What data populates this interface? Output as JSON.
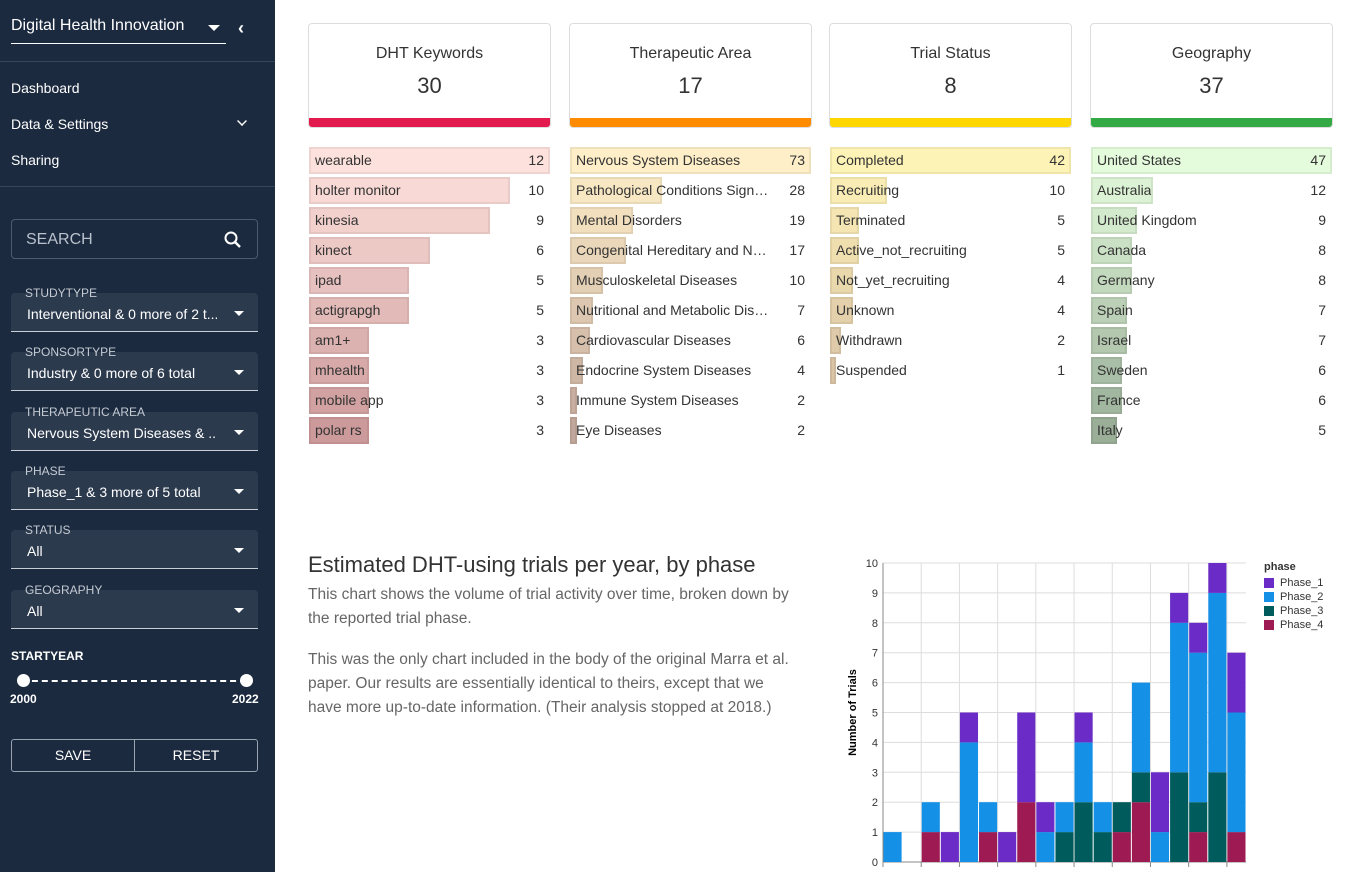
{
  "sidebar": {
    "app_title": "Digital Health Innovation",
    "nav": [
      "Dashboard",
      "Data & Settings",
      "Sharing"
    ],
    "search_placeholder": "SEARCH",
    "filters": [
      {
        "label": "STUDYTYPE",
        "value": "Interventional & 0 more of 2 t..."
      },
      {
        "label": "SPONSORTYPE",
        "value": "Industry & 0 more of 6 total"
      },
      {
        "label": "THERAPEUTIC AREA",
        "value": "Nervous System Diseases & ..."
      },
      {
        "label": "PHASE",
        "value": "Phase_1 & 3 more of 5 total"
      },
      {
        "label": "STATUS",
        "value": "All"
      },
      {
        "label": "GEOGRAPHY",
        "value": "All"
      }
    ],
    "startyear": {
      "label": "STARTYEAR",
      "min": "2000",
      "max": "2022"
    },
    "save": "SAVE",
    "reset": "RESET"
  },
  "cards": [
    {
      "title": "DHT Keywords",
      "count": "30",
      "color": "#e31a4d",
      "row_from": "#fde1dc",
      "row_to": "#cc9a9a",
      "items": [
        [
          "wearable",
          12
        ],
        [
          "holter monitor",
          10
        ],
        [
          "kinesia",
          9
        ],
        [
          "kinect",
          6
        ],
        [
          "ipad",
          5
        ],
        [
          "actigrapgh",
          5
        ],
        [
          "am1+",
          3
        ],
        [
          "mhealth",
          3
        ],
        [
          "mobile app",
          3
        ],
        [
          "polar rs",
          3
        ]
      ]
    },
    {
      "title": "Therapeutic Area",
      "count": "17",
      "color": "#ff8c00",
      "row_from": "#feefc8",
      "row_to": "#c2a79c",
      "items": [
        [
          "Nervous System Diseases",
          73
        ],
        [
          "Pathological Conditions Signs ...",
          28
        ],
        [
          "Mental Disorders",
          19
        ],
        [
          "Congenital Hereditary and Neo...",
          17
        ],
        [
          "Musculoskeletal Diseases",
          10
        ],
        [
          "Nutritional and Metabolic Dise...",
          7
        ],
        [
          "Cardiovascular Diseases",
          6
        ],
        [
          "Endocrine System Diseases",
          4
        ],
        [
          "Immune System Diseases",
          2
        ],
        [
          "Eye Diseases",
          2
        ]
      ]
    },
    {
      "title": "Trial Status",
      "count": "8",
      "color": "#ffd700",
      "row_from": "#fef3b6",
      "row_to": "#d0b6a2",
      "items": [
        [
          "Completed",
          42
        ],
        [
          "Recruiting",
          10
        ],
        [
          "Terminated",
          5
        ],
        [
          "Active_not_recruiting",
          5
        ],
        [
          "Not_yet_recruiting",
          4
        ],
        [
          "Unknown",
          4
        ],
        [
          "Withdrawn",
          2
        ],
        [
          "Suspended",
          1
        ]
      ]
    },
    {
      "title": "Geography",
      "count": "37",
      "color": "#33aa44",
      "row_from": "#e4fbdc",
      "row_to": "#9aae98",
      "items": [
        [
          "United States",
          47
        ],
        [
          "Australia",
          12
        ],
        [
          "United Kingdom",
          9
        ],
        [
          "Canada",
          8
        ],
        [
          "Germany",
          8
        ],
        [
          "Spain",
          7
        ],
        [
          "Israel",
          7
        ],
        [
          "Sweden",
          6
        ],
        [
          "France",
          6
        ],
        [
          "Italy",
          5
        ]
      ]
    }
  ],
  "chart_section": {
    "title": "Estimated DHT-using trials per year, by phase",
    "p1": "This chart shows the volume of trial activity over time, broken down by the reported trial phase.",
    "p2": "This was the only chart included in the body of the original Marra et al. paper. Our results are essentially identical to theirs, except that we have more up-to-date information. (Their analysis stopped at 2018.)"
  },
  "chart_data": {
    "type": "bar",
    "stacked": true,
    "ylabel": "Number of Trials",
    "ylim": [
      0,
      10
    ],
    "yticks": [
      "0",
      "1",
      "2",
      "3",
      "4",
      "5",
      "6",
      "7",
      "8",
      "9",
      "10"
    ],
    "legend_title": "phase",
    "legend": "right",
    "grid": true,
    "series": [
      {
        "name": "Phase_1",
        "color": "#6a2bc6",
        "values": [
          0,
          0,
          0,
          1,
          1,
          0,
          1,
          3,
          1,
          0,
          1,
          0,
          0,
          0,
          2,
          1,
          1,
          1,
          2
        ]
      },
      {
        "name": "Phase_2",
        "color": "#1490e6",
        "values": [
          1,
          0,
          1,
          0,
          4,
          1,
          0,
          0,
          1,
          1,
          2,
          1,
          0,
          3,
          1,
          5,
          5,
          6,
          4
        ]
      },
      {
        "name": "Phase_3",
        "color": "#005c5c",
        "values": [
          0,
          0,
          0,
          0,
          0,
          0,
          0,
          0,
          0,
          1,
          2,
          1,
          1,
          1,
          0,
          3,
          1,
          3,
          0
        ]
      },
      {
        "name": "Phase_4",
        "color": "#9e1a52",
        "values": [
          0,
          0,
          1,
          0,
          0,
          1,
          0,
          2,
          0,
          0,
          0,
          0,
          1,
          2,
          0,
          0,
          1,
          0,
          1
        ]
      }
    ]
  }
}
